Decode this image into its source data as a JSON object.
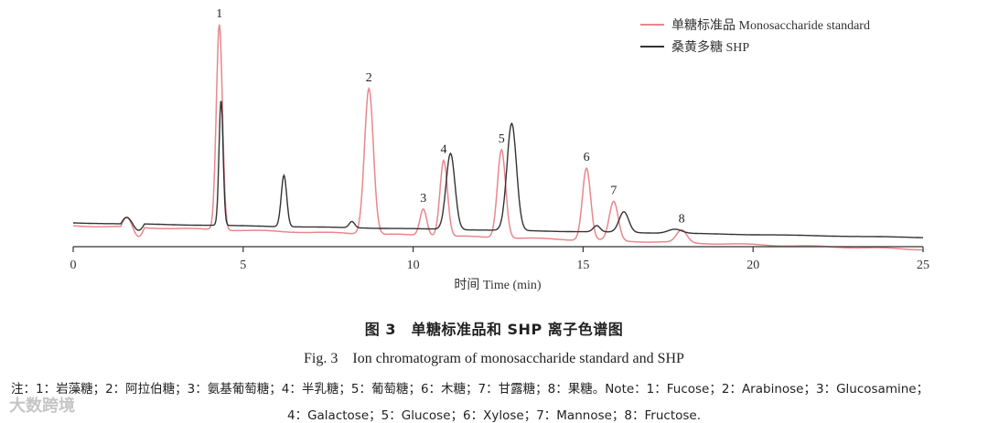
{
  "chart_data": {
    "type": "line",
    "xlabel": "时间 Time (min)",
    "ylabel": "",
    "xlim": [
      0,
      25
    ],
    "x_ticks": [
      "0",
      "5",
      "10",
      "15",
      "20",
      "25"
    ],
    "legend_position": "top-right",
    "series": [
      {
        "name": "单糖标准品 Monosaccharide standard",
        "color": "#e8878d",
        "peaks": [
          {
            "label": "1",
            "x": 4.3,
            "height": 1.0
          },
          {
            "label": "2",
            "x": 8.7,
            "height": 0.71
          },
          {
            "label": "3",
            "x": 10.3,
            "height": 0.13
          },
          {
            "label": "4",
            "x": 10.9,
            "height": 0.37
          },
          {
            "label": "5",
            "x": 12.6,
            "height": 0.43
          },
          {
            "label": "6",
            "x": 15.1,
            "height": 0.35
          },
          {
            "label": "7",
            "x": 15.9,
            "height": 0.19
          },
          {
            "label": "8",
            "x": 17.9,
            "height": 0.06
          }
        ]
      },
      {
        "name": "桑黄多糖 SHP",
        "color": "#333333",
        "peaks": [
          {
            "x": 4.35,
            "height": 0.61
          },
          {
            "x": 6.2,
            "height": 0.25
          },
          {
            "x": 8.2,
            "height": 0.03
          },
          {
            "x": 11.1,
            "height": 0.37
          },
          {
            "x": 12.9,
            "height": 0.52
          },
          {
            "x": 15.4,
            "height": 0.03
          },
          {
            "x": 16.2,
            "height": 0.1
          },
          {
            "x": 17.7,
            "height": 0.02
          }
        ]
      }
    ]
  },
  "legend": {
    "standard": "单糖标准品 Monosaccharide standard",
    "shp": "桑黄多糖 SHP"
  },
  "caption": {
    "cn": "图 3　单糖标准品和 SHP 离子色谱图",
    "en": "Fig. 3　Ion chromatogram of monosaccharide standard and SHP"
  },
  "note": {
    "line1": "注：1：岩藻糖；2：阿拉伯糖；3：氨基葡萄糖；4：半乳糖；5：葡萄糖；6：木糖；7：甘露糖；8：果糖。Note：1：Fucose；2：Arabinose；3：Glucosamine；",
    "line2": "4：Galactose；5：Glucose；6：Xylose；7：Mannose；8：Fructose."
  },
  "watermark": "大数跨境"
}
